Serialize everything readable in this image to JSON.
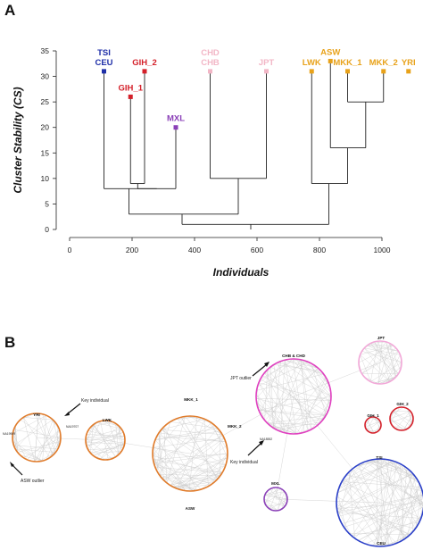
{
  "panelA": {
    "label": "A",
    "ylabel": "Cluster Stability (CS)",
    "xlabel": "Individuals",
    "yticks": [
      "0",
      "5",
      "10",
      "15",
      "20",
      "25",
      "30",
      "35"
    ],
    "xticks": [
      "0",
      "200",
      "400",
      "600",
      "800",
      "1000"
    ],
    "colors": {
      "blue": "#1f2fa8",
      "red": "#d4202a",
      "purple": "#8b40b8",
      "pink": "#f2b6c6",
      "orange": "#e8a21a"
    }
  },
  "chart_data": {
    "type": "dendrogram",
    "xlabel": "Individuals",
    "ylabel": "Cluster Stability (CS)",
    "xlim": [
      0,
      1100
    ],
    "ylim": [
      0,
      35
    ],
    "leaves": [
      {
        "label": "TSI\nCEU",
        "x": 110,
        "cs": 31,
        "color": "blue"
      },
      {
        "label": "GIH_1",
        "x": 195,
        "cs": 26,
        "color": "red"
      },
      {
        "label": "GIH_2",
        "x": 240,
        "cs": 31,
        "color": "red"
      },
      {
        "label": "MXL",
        "x": 340,
        "cs": 20,
        "color": "purple"
      },
      {
        "label": "CHD\nCHB",
        "x": 450,
        "cs": 31,
        "color": "pink"
      },
      {
        "label": "JPT",
        "x": 630,
        "cs": 31,
        "color": "pink"
      },
      {
        "label": "LWK",
        "x": 775,
        "cs": 31,
        "color": "orange"
      },
      {
        "label": "ASW",
        "x": 835,
        "cs": 33,
        "color": "orange"
      },
      {
        "label": "MKK_1",
        "x": 890,
        "cs": 31,
        "color": "orange"
      },
      {
        "label": "MKK_2",
        "x": 1005,
        "cs": 31,
        "color": "orange"
      },
      {
        "label": "YRI",
        "x": 1085,
        "cs": 31,
        "color": "orange"
      }
    ],
    "merges": [
      {
        "left": 195,
        "right": 240,
        "height": 9,
        "parent": 218
      },
      {
        "left": 218,
        "right": 340,
        "height": 8,
        "parent": 279
      },
      {
        "left": 110,
        "right": 279,
        "height": 8,
        "parent": 190
      },
      {
        "left": 450,
        "right": 630,
        "height": 10,
        "parent": 540
      },
      {
        "left": 190,
        "right": 540,
        "height": 3,
        "parent": 360
      },
      {
        "left": 890,
        "right": 1005,
        "height": 25,
        "parent": 948
      },
      {
        "left": 835,
        "right": 948,
        "height": 16,
        "parent": 890
      },
      {
        "left": 775,
        "right": 890,
        "height": 9,
        "parent": 830
      },
      {
        "left": 360,
        "right": 830,
        "height": 1,
        "parent": 580
      }
    ]
  },
  "panelB": {
    "label": "B",
    "labels": {
      "yri": "YRI",
      "lwk": "LWK",
      "mkk": "MKK_1",
      "mkk2": "MKK_2",
      "asw": "ASW",
      "chb": "CHB & CHD",
      "jpt": "JPT",
      "gih1": "GIH_1",
      "gih2": "GIH_2",
      "mxl": "MXL",
      "tsi": "TSI",
      "ceu": "CEU"
    },
    "annotations": {
      "key1": "Key individual",
      "asw_outlier": "ASW outlier",
      "jpt_outlier": "JPT outlier",
      "key2": "Key individual"
    },
    "tiny": {
      "yri_id": "NA19707",
      "asw_id": "NA19909",
      "chb_id": "NA18552"
    }
  }
}
